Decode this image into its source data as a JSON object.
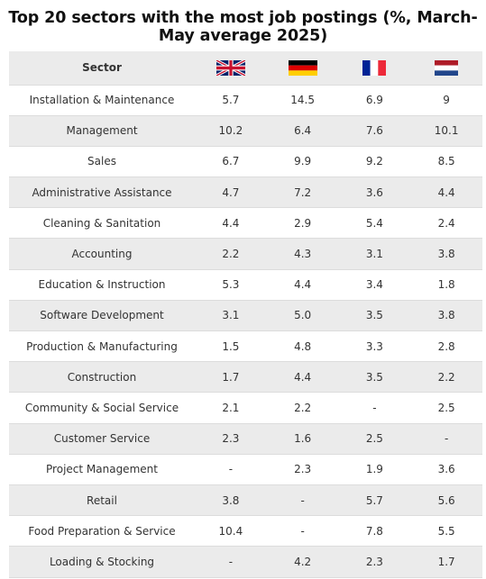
{
  "title": "Top 20 sectors with the most job postings (%, March-May average 2025)",
  "colors": {
    "header_bg": "#ebebeb",
    "stripe_bg": "#ebebeb",
    "text": "#333333"
  },
  "chart_data": {
    "type": "table",
    "title": "Top 20 sectors with the most job postings (%, March-May average 2025)",
    "header": {
      "sector": "Sector"
    },
    "columns": [
      {
        "icon": "uk-flag-icon"
      },
      {
        "icon": "germany-flag-icon"
      },
      {
        "icon": "france-flag-icon"
      },
      {
        "icon": "netherlands-flag-icon"
      }
    ],
    "rows": [
      {
        "sector": "Installation & Maintenance",
        "values": [
          "5.7",
          "14.5",
          "6.9",
          "9"
        ]
      },
      {
        "sector": "Management",
        "values": [
          "10.2",
          "6.4",
          "7.6",
          "10.1"
        ]
      },
      {
        "sector": "Sales",
        "values": [
          "6.7",
          "9.9",
          "9.2",
          "8.5"
        ]
      },
      {
        "sector": "Administrative Assistance",
        "values": [
          "4.7",
          "7.2",
          "3.6",
          "4.4"
        ]
      },
      {
        "sector": "Cleaning & Sanitation",
        "values": [
          "4.4",
          "2.9",
          "5.4",
          "2.4"
        ]
      },
      {
        "sector": "Accounting",
        "values": [
          "2.2",
          "4.3",
          "3.1",
          "3.8"
        ]
      },
      {
        "sector": "Education & Instruction",
        "values": [
          "5.3",
          "4.4",
          "3.4",
          "1.8"
        ]
      },
      {
        "sector": "Software Development",
        "values": [
          "3.1",
          "5.0",
          "3.5",
          "3.8"
        ]
      },
      {
        "sector": "Production & Manufacturing",
        "values": [
          "1.5",
          "4.8",
          "3.3",
          "2.8"
        ]
      },
      {
        "sector": "Construction",
        "values": [
          "1.7",
          "4.4",
          "3.5",
          "2.2"
        ]
      },
      {
        "sector": "Community & Social Service",
        "values": [
          "2.1",
          "2.2",
          "-",
          "2.5"
        ]
      },
      {
        "sector": "Customer Service",
        "values": [
          "2.3",
          "1.6",
          "2.5",
          "-"
        ]
      },
      {
        "sector": "Project Management",
        "values": [
          "-",
          "2.3",
          "1.9",
          "3.6"
        ]
      },
      {
        "sector": "Retail",
        "values": [
          "3.8",
          "-",
          "5.7",
          "5.6"
        ]
      },
      {
        "sector": "Food Preparation & Service",
        "values": [
          "10.4",
          "-",
          "7.8",
          "5.5"
        ]
      },
      {
        "sector": "Loading & Stocking",
        "values": [
          "-",
          "4.2",
          "2.3",
          "1.7"
        ]
      }
    ]
  }
}
